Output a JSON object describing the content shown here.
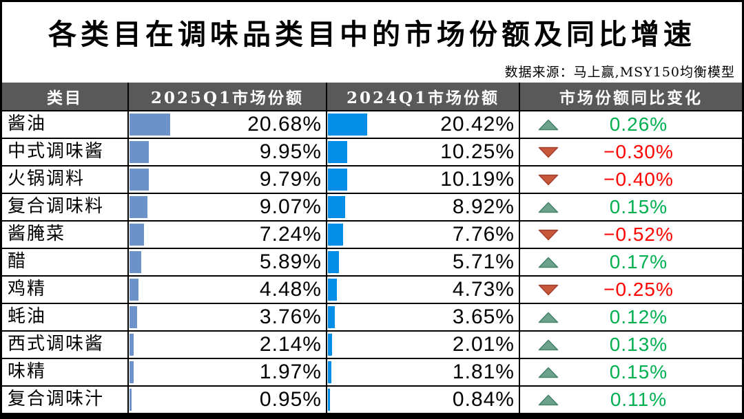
{
  "title": "各类目在调味品类目中的市场份额及同比增速",
  "source": "数据来源：马上赢,MSY150均衡模型",
  "table": {
    "headers": [
      "类目",
      "2025Q1市场份额",
      "2024Q1市场份额",
      "市场份额同比变化"
    ],
    "rows": [
      {
        "category": "酱油",
        "share_2025": "20.68%",
        "share_2024": "20.42%",
        "direction": "up",
        "change": "0.26%"
      },
      {
        "category": "中式调味酱",
        "share_2025": "9.95%",
        "share_2024": "10.25%",
        "direction": "down",
        "change": "−0.30%"
      },
      {
        "category": "火锅调料",
        "share_2025": "9.79%",
        "share_2024": "10.19%",
        "direction": "down",
        "change": "−0.40%"
      },
      {
        "category": "复合调味料",
        "share_2025": "9.07%",
        "share_2024": "8.92%",
        "direction": "up",
        "change": "0.15%"
      },
      {
        "category": "酱腌菜",
        "share_2025": "7.24%",
        "share_2024": "7.76%",
        "direction": "down",
        "change": "−0.52%"
      },
      {
        "category": "醋",
        "share_2025": "5.89%",
        "share_2024": "5.71%",
        "direction": "up",
        "change": "0.17%"
      },
      {
        "category": "鸡精",
        "share_2025": "4.48%",
        "share_2024": "4.73%",
        "direction": "down",
        "change": "−0.25%"
      },
      {
        "category": "蚝油",
        "share_2025": "3.76%",
        "share_2024": "3.65%",
        "direction": "up",
        "change": "0.12%"
      },
      {
        "category": "西式调味酱",
        "share_2025": "2.14%",
        "share_2024": "2.01%",
        "direction": "up",
        "change": "0.13%"
      },
      {
        "category": "味精",
        "share_2025": "1.97%",
        "share_2024": "1.81%",
        "direction": "up",
        "change": "0.15%"
      },
      {
        "category": "复合调味汁",
        "share_2025": "0.95%",
        "share_2024": "0.84%",
        "direction": "up",
        "change": "0.11%"
      }
    ]
  },
  "colors": {
    "header_bg": "#595959",
    "header_text": "#FFFFFF",
    "bar_2025": "#6B93C9",
    "bar_2024": "#058EE8",
    "up_triangle_fill": "#6BA28B",
    "up_triangle_border": "#45816B",
    "down_triangle_fill": "#C8573C",
    "down_triangle_border": "#A33E2B",
    "positive_text": "#00B050",
    "negative_text": "#FF0000",
    "border": "#000000"
  },
  "chart_data": {
    "type": "table",
    "title": "各类目在调味品类目中的市场份额及同比增速",
    "source": "数据来源：马上赢,MSY150均衡模型",
    "columns": [
      "类目",
      "2025Q1市场份额",
      "2024Q1市场份额",
      "市场份额同比变化"
    ],
    "categories": [
      "酱油",
      "中式调味酱",
      "火锅调料",
      "复合调味料",
      "酱腌菜",
      "醋",
      "鸡精",
      "蚝油",
      "西式调味酱",
      "味精",
      "复合调味汁"
    ],
    "series": [
      {
        "name": "2025Q1市场份额",
        "values": [
          20.68,
          9.95,
          9.79,
          9.07,
          7.24,
          5.89,
          4.48,
          3.76,
          2.14,
          1.97,
          0.95
        ]
      },
      {
        "name": "2024Q1市场份额",
        "values": [
          20.42,
          10.25,
          10.19,
          8.92,
          7.76,
          5.71,
          4.73,
          3.65,
          2.01,
          1.81,
          0.84
        ]
      },
      {
        "name": "市场份额同比变化",
        "values": [
          0.26,
          -0.3,
          -0.4,
          0.15,
          -0.52,
          0.17,
          -0.25,
          0.12,
          0.13,
          0.15,
          0.11
        ]
      }
    ],
    "databar_axis": [
      0,
      100
    ],
    "layout": "data bars embedded in columns 2 and 3; up/down triangle icons with green/red change values in column 4"
  }
}
